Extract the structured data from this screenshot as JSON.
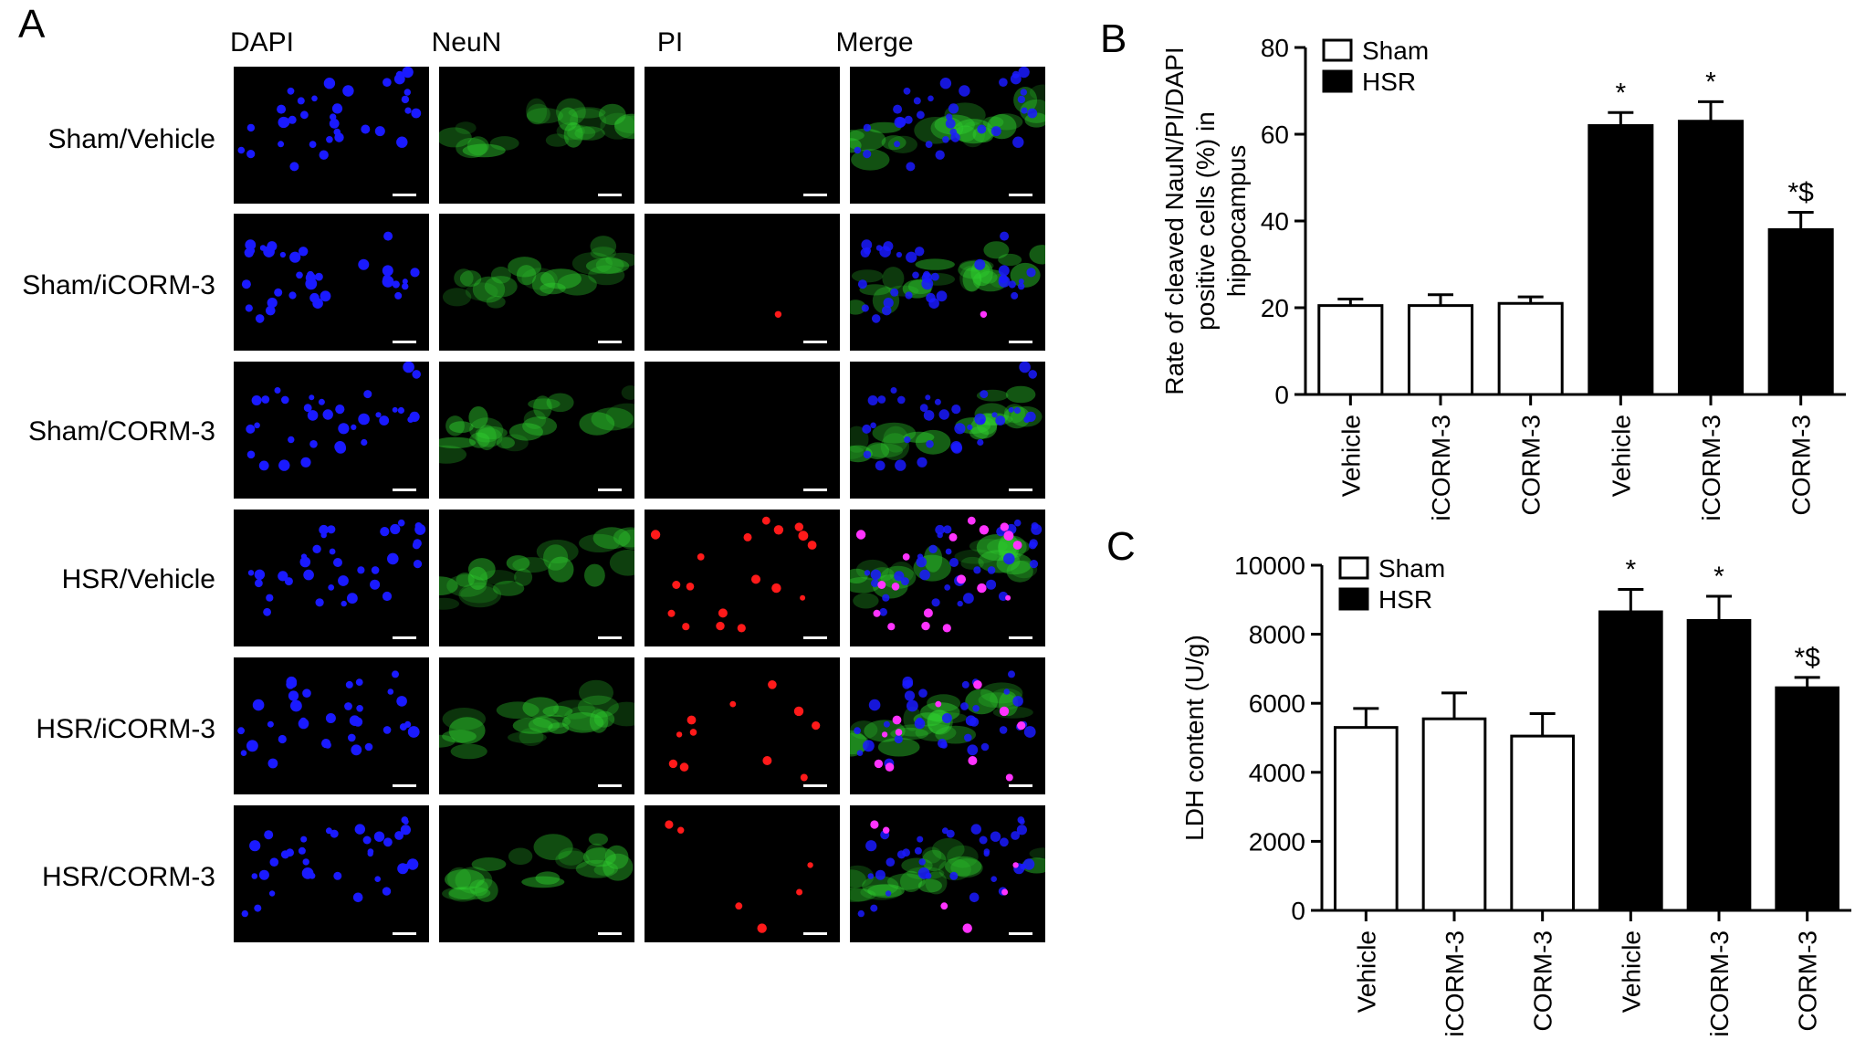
{
  "panel_a": {
    "letter": "A",
    "columns": [
      "DAPI",
      "NeuN",
      "PI",
      "Merge"
    ],
    "rows": [
      "Sham/Vehicle",
      "Sham/iCORM-3",
      "Sham/CORM-3",
      "HSR/Vehicle",
      "HSR/iCORM-3",
      "HSR/CORM-3"
    ],
    "pi_signal": [
      0,
      0.05,
      0,
      1,
      0.6,
      0.35
    ],
    "colors": {
      "dapi": "#1a1aff",
      "neun": "#2fd12f",
      "pi": "#ff1a1a",
      "merge_overlap": "#ff33ff",
      "scale_bar": "#ffffff"
    }
  },
  "chart_data": [
    {
      "letter": "B",
      "type": "bar",
      "ylabel_lines": [
        "Rate of cleaved NauN/PI/DAPI",
        "positive cells (%) in",
        "hippocampus"
      ],
      "categories": [
        "Vehicle",
        "iCORM-3",
        "CORM-3",
        "Vehicle",
        "iCORM-3",
        "CORM-3"
      ],
      "groups": [
        "Sham",
        "Sham",
        "Sham",
        "HSR",
        "HSR",
        "HSR"
      ],
      "values": [
        20.5,
        20.5,
        21,
        62,
        63,
        38
      ],
      "errors": [
        1.5,
        2.5,
        1.5,
        3,
        4.5,
        4
      ],
      "annotations": [
        "",
        "",
        "",
        "*",
        "*",
        "*$"
      ],
      "ylim": [
        0,
        80
      ],
      "yticks": [
        0,
        20,
        40,
        60,
        80
      ],
      "legend": [
        {
          "name": "Sham",
          "color": "#ffffff"
        },
        {
          "name": "HSR",
          "color": "#000000"
        }
      ],
      "legend_position": "top-left"
    },
    {
      "letter": "C",
      "type": "bar",
      "ylabel_lines": [
        "LDH content (U/g)"
      ],
      "categories": [
        "Vehicle",
        "iCORM-3",
        "CORM-3",
        "Vehicle",
        "iCORM-3",
        "CORM-3"
      ],
      "groups": [
        "Sham",
        "Sham",
        "Sham",
        "HSR",
        "HSR",
        "HSR"
      ],
      "values": [
        5300,
        5550,
        5050,
        8650,
        8400,
        6450
      ],
      "errors": [
        550,
        750,
        650,
        650,
        700,
        300
      ],
      "annotations": [
        "",
        "",
        "",
        "*",
        "*",
        "*$"
      ],
      "ylim": [
        0,
        10000
      ],
      "yticks": [
        0,
        2000,
        4000,
        6000,
        8000,
        10000
      ],
      "legend": [
        {
          "name": "Sham",
          "color": "#ffffff"
        },
        {
          "name": "HSR",
          "color": "#000000"
        }
      ],
      "legend_position": "top-left"
    }
  ]
}
